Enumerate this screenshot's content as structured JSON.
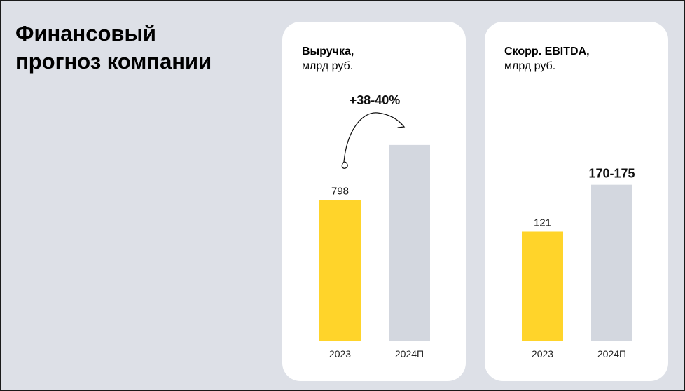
{
  "page": {
    "title_line1": "Финансовый",
    "title_line2": "прогноз компании"
  },
  "colors": {
    "background": "#dde0e7",
    "card": "#ffffff",
    "actual_bar": "#ffd42a",
    "forecast_bar": "#d3d7df",
    "text": "#000000"
  },
  "chart_data": [
    {
      "type": "bar",
      "title": "Выручка,",
      "subtitle": "млрд руб.",
      "categories": [
        "2023",
        "2024П"
      ],
      "values": [
        798,
        1110
      ],
      "value_labels": [
        "798",
        ""
      ],
      "annotation": "+38-40%",
      "annotation_arrow": true,
      "bar_colors": [
        "#ffd42a",
        "#d3d7df"
      ],
      "ylim": [
        0,
        1380
      ],
      "legend": "none",
      "grid": false
    },
    {
      "type": "bar",
      "title": "Скорр. EBITDA,",
      "subtitle": "млрд руб.",
      "categories": [
        "2023",
        "2024П"
      ],
      "values": [
        121,
        173
      ],
      "value_labels": [
        "121",
        "170-175"
      ],
      "value_label_bold": [
        false,
        true
      ],
      "bar_colors": [
        "#ffd42a",
        "#d3d7df"
      ],
      "ylim": [
        0,
        270
      ],
      "legend": "none",
      "grid": false
    }
  ]
}
